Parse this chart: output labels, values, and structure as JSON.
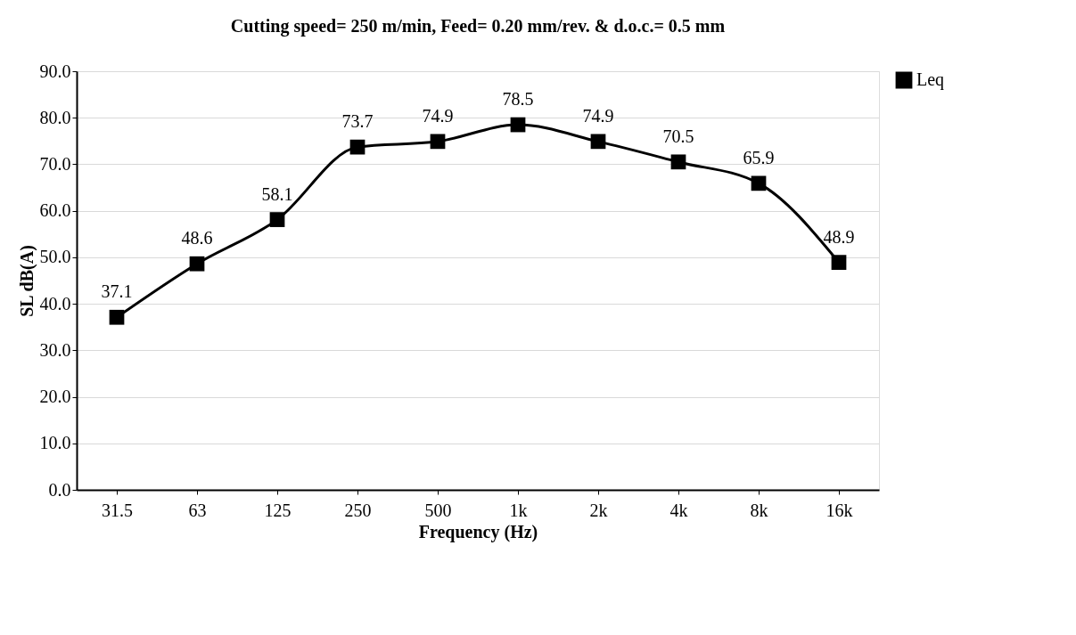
{
  "chart_data": {
    "type": "line",
    "title": "Cutting speed= 250 m/min, Feed= 0.20 mm/rev. & d.o.c.= 0.5 mm",
    "xlabel": "Frequency (Hz)",
    "ylabel": "SL dB(A)",
    "categories": [
      "31.5",
      "63",
      "125",
      "250",
      "500",
      "1k",
      "2k",
      "4k",
      "8k",
      "16k"
    ],
    "series": [
      {
        "name": "Leq",
        "color": "#000000",
        "values": [
          37.1,
          48.6,
          58.1,
          73.7,
          74.9,
          78.5,
          74.9,
          70.5,
          65.9,
          48.9
        ]
      }
    ],
    "ylim": [
      0,
      90
    ],
    "yticks": [
      {
        "value": 0,
        "label": "0.0"
      },
      {
        "value": 10,
        "label": "10.0"
      },
      {
        "value": 20,
        "label": "20.0"
      },
      {
        "value": 30,
        "label": "30.0"
      },
      {
        "value": 40,
        "label": "40.0"
      },
      {
        "value": 50,
        "label": "50.0"
      },
      {
        "value": 60,
        "label": "60.0"
      },
      {
        "value": 70,
        "label": "70.0"
      },
      {
        "value": 80,
        "label": "80.0"
      },
      {
        "value": 90,
        "label": "90.0"
      }
    ],
    "grid": "y",
    "legend": "right",
    "marker": "square",
    "data_labels": true
  }
}
